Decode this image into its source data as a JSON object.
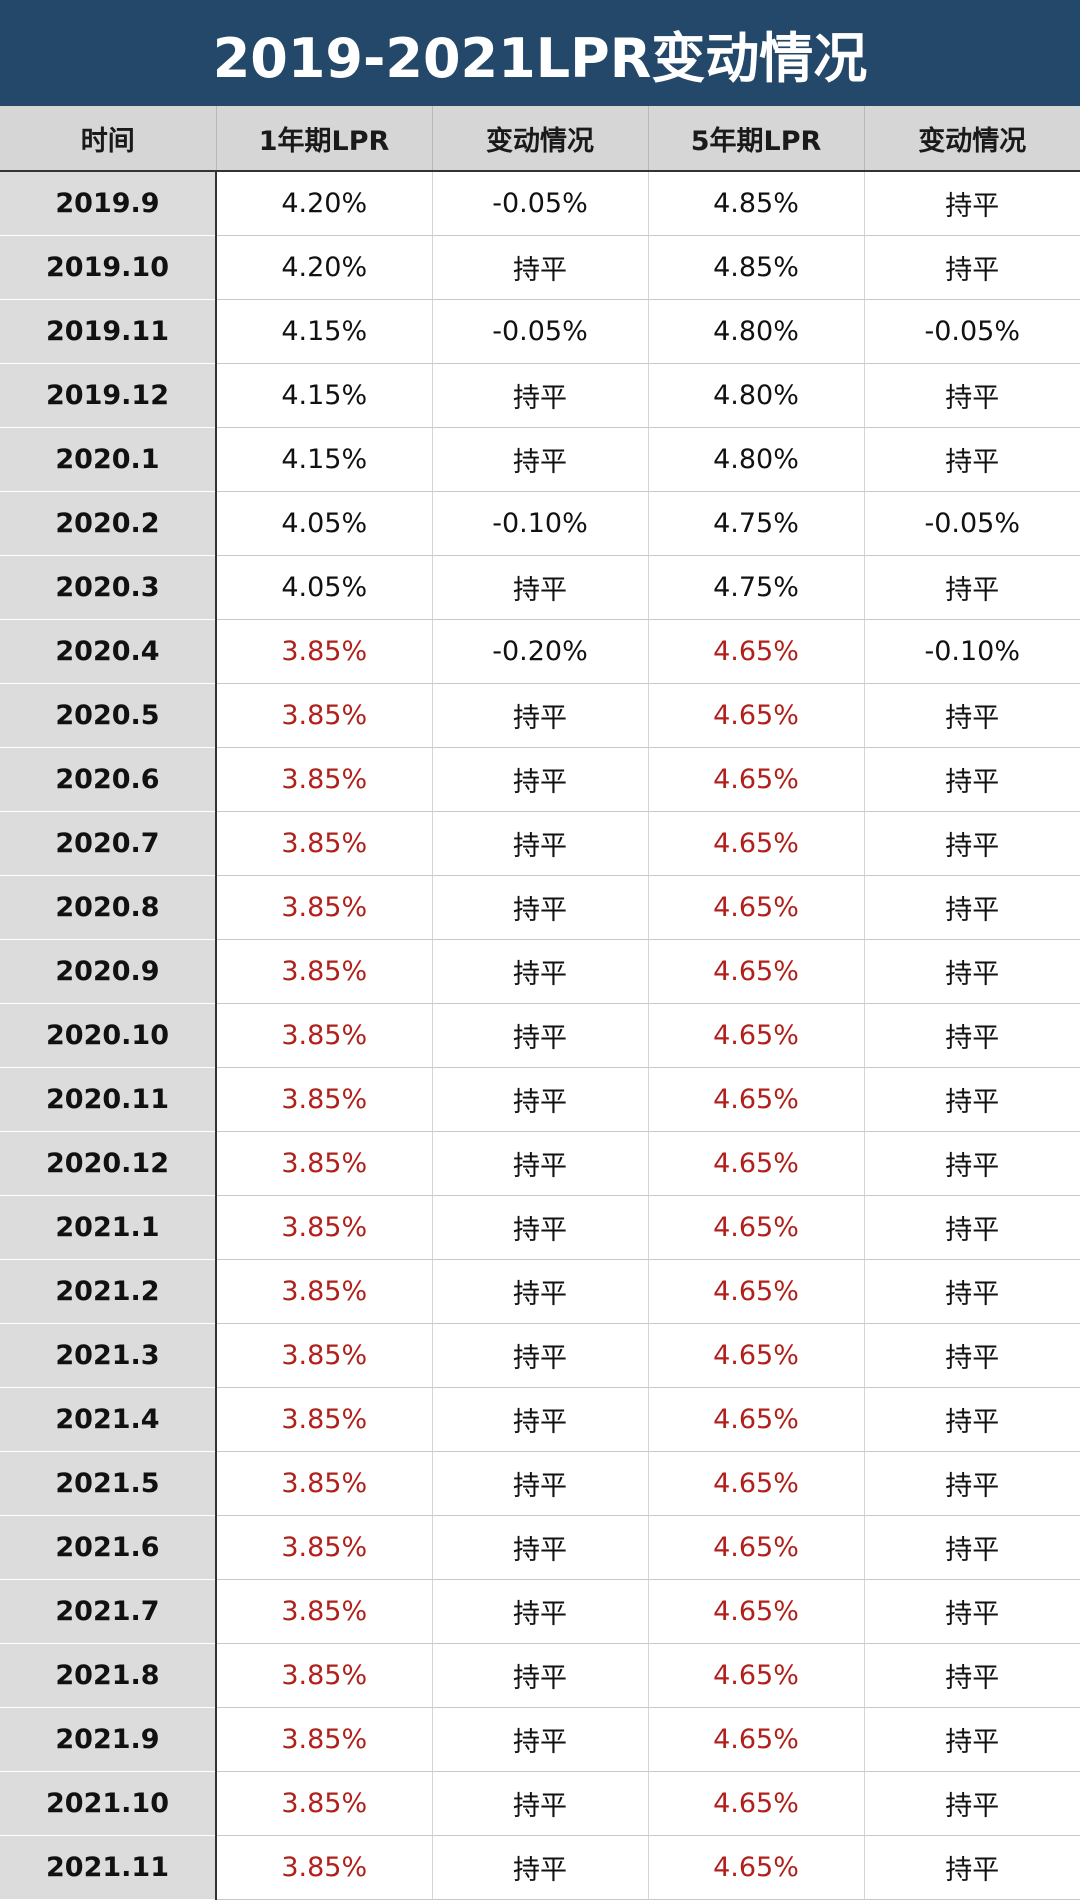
{
  "title": "2019-2021LPR变动情况",
  "colors": {
    "title_bg": "#244869",
    "header_bg": "#d6d6d6",
    "date_col_bg": "#dcdcdc",
    "highlight_red": "#b0201c",
    "text": "#111111"
  },
  "table": {
    "headers": [
      "时间",
      "1年期LPR",
      "变动情况",
      "5年期LPR",
      "变动情况"
    ],
    "rows": [
      {
        "date": "2019.9",
        "lpr1": "4.20%",
        "chg1": "-0.05%",
        "lpr5": "4.85%",
        "chg5": "持平",
        "highlight": false
      },
      {
        "date": "2019.10",
        "lpr1": "4.20%",
        "chg1": "持平",
        "lpr5": "4.85%",
        "chg5": "持平",
        "highlight": false
      },
      {
        "date": "2019.11",
        "lpr1": "4.15%",
        "chg1": "-0.05%",
        "lpr5": "4.80%",
        "chg5": "-0.05%",
        "highlight": false
      },
      {
        "date": "2019.12",
        "lpr1": "4.15%",
        "chg1": "持平",
        "lpr5": "4.80%",
        "chg5": "持平",
        "highlight": false
      },
      {
        "date": "2020.1",
        "lpr1": "4.15%",
        "chg1": "持平",
        "lpr5": "4.80%",
        "chg5": "持平",
        "highlight": false
      },
      {
        "date": "2020.2",
        "lpr1": "4.05%",
        "chg1": "-0.10%",
        "lpr5": "4.75%",
        "chg5": "-0.05%",
        "highlight": false
      },
      {
        "date": "2020.3",
        "lpr1": "4.05%",
        "chg1": "持平",
        "lpr5": "4.75%",
        "chg5": "持平",
        "highlight": false
      },
      {
        "date": "2020.4",
        "lpr1": "3.85%",
        "chg1": "-0.20%",
        "lpr5": "4.65%",
        "chg5": "-0.10%",
        "highlight": true
      },
      {
        "date": "2020.5",
        "lpr1": "3.85%",
        "chg1": "持平",
        "lpr5": "4.65%",
        "chg5": "持平",
        "highlight": true
      },
      {
        "date": "2020.6",
        "lpr1": "3.85%",
        "chg1": "持平",
        "lpr5": "4.65%",
        "chg5": "持平",
        "highlight": true
      },
      {
        "date": "2020.7",
        "lpr1": "3.85%",
        "chg1": "持平",
        "lpr5": "4.65%",
        "chg5": "持平",
        "highlight": true
      },
      {
        "date": "2020.8",
        "lpr1": "3.85%",
        "chg1": "持平",
        "lpr5": "4.65%",
        "chg5": "持平",
        "highlight": true
      },
      {
        "date": "2020.9",
        "lpr1": "3.85%",
        "chg1": "持平",
        "lpr5": "4.65%",
        "chg5": "持平",
        "highlight": true
      },
      {
        "date": "2020.10",
        "lpr1": "3.85%",
        "chg1": "持平",
        "lpr5": "4.65%",
        "chg5": "持平",
        "highlight": true
      },
      {
        "date": "2020.11",
        "lpr1": "3.85%",
        "chg1": "持平",
        "lpr5": "4.65%",
        "chg5": "持平",
        "highlight": true
      },
      {
        "date": "2020.12",
        "lpr1": "3.85%",
        "chg1": "持平",
        "lpr5": "4.65%",
        "chg5": "持平",
        "highlight": true
      },
      {
        "date": "2021.1",
        "lpr1": "3.85%",
        "chg1": "持平",
        "lpr5": "4.65%",
        "chg5": "持平",
        "highlight": true
      },
      {
        "date": "2021.2",
        "lpr1": "3.85%",
        "chg1": "持平",
        "lpr5": "4.65%",
        "chg5": "持平",
        "highlight": true
      },
      {
        "date": "2021.3",
        "lpr1": "3.85%",
        "chg1": "持平",
        "lpr5": "4.65%",
        "chg5": "持平",
        "highlight": true
      },
      {
        "date": "2021.4",
        "lpr1": "3.85%",
        "chg1": "持平",
        "lpr5": "4.65%",
        "chg5": "持平",
        "highlight": true
      },
      {
        "date": "2021.5",
        "lpr1": "3.85%",
        "chg1": "持平",
        "lpr5": "4.65%",
        "chg5": "持平",
        "highlight": true
      },
      {
        "date": "2021.6",
        "lpr1": "3.85%",
        "chg1": "持平",
        "lpr5": "4.65%",
        "chg5": "持平",
        "highlight": true
      },
      {
        "date": "2021.7",
        "lpr1": "3.85%",
        "chg1": "持平",
        "lpr5": "4.65%",
        "chg5": "持平",
        "highlight": true
      },
      {
        "date": "2021.8",
        "lpr1": "3.85%",
        "chg1": "持平",
        "lpr5": "4.65%",
        "chg5": "持平",
        "highlight": true
      },
      {
        "date": "2021.9",
        "lpr1": "3.85%",
        "chg1": "持平",
        "lpr5": "4.65%",
        "chg5": "持平",
        "highlight": true
      },
      {
        "date": "2021.10",
        "lpr1": "3.85%",
        "chg1": "持平",
        "lpr5": "4.65%",
        "chg5": "持平",
        "highlight": true
      },
      {
        "date": "2021.11",
        "lpr1": "3.85%",
        "chg1": "持平",
        "lpr5": "4.65%",
        "chg5": "持平",
        "highlight": true
      }
    ]
  }
}
